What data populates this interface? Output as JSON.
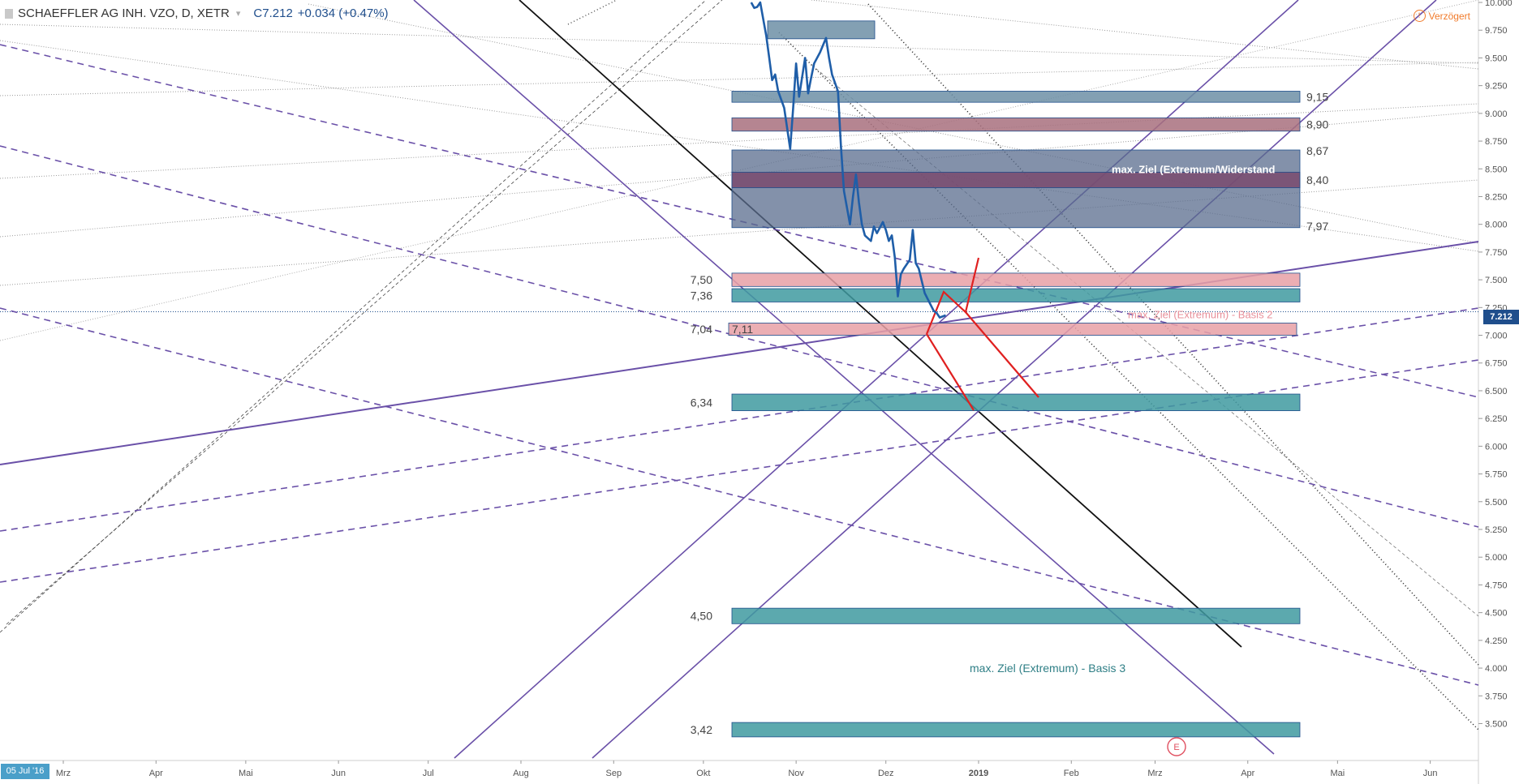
{
  "header": {
    "symbol": "SCHAEFFLER AG INH. VZO, D, XETR",
    "price_prefix": "C",
    "price": "7.212",
    "change": "+0.034 (+0.47%)"
  },
  "delay_label": "Verzögert",
  "delay_icon": "clock-icon",
  "date_chip": "05 Jul '16",
  "current_price_tag": "7.212",
  "colors": {
    "price_line": "#1f5ea8",
    "teal_zone": "#3f9aa0",
    "pink_zone": "#e8a0a6",
    "mauve_zone": "#a8707e",
    "slate_zone": "#6d8fa6",
    "navy_zone": "#5a6c8e",
    "purple_line": "#6a50a8",
    "red_projection": "#e02020",
    "current_price_tag": "#1f4e8c"
  },
  "chart_data": {
    "type": "line",
    "title": "SCHAEFFLER AG INH. VZO, D, XETR",
    "y_axis_side": "right",
    "ylim": [
      3.35,
      10.0
    ],
    "y_ticks": [
      "10.000",
      "9.750",
      "9.500",
      "9.250",
      "9.000",
      "8.750",
      "8.500",
      "8.250",
      "8.000",
      "7.750",
      "7.500",
      "7.250",
      "7.000",
      "6.750",
      "6.500",
      "6.250",
      "6.000",
      "5.750",
      "5.500",
      "5.250",
      "5.000",
      "4.750",
      "4.500",
      "4.250",
      "4.000",
      "3.750",
      "3.500"
    ],
    "x_tick_labels": [
      "Mrz",
      "Apr",
      "Mai",
      "Jun",
      "Jul",
      "Aug",
      "Sep",
      "Okt",
      "Nov",
      "Dez",
      "2019",
      "Feb",
      "Mrz",
      "Apr",
      "Mai",
      "Jun"
    ],
    "x_tick_months": [
      "2018-03",
      "2018-04",
      "2018-05",
      "2018-06",
      "2018-07",
      "2018-08",
      "2018-09",
      "2018-10",
      "2018-11",
      "2018-12",
      "2019-01",
      "2019-02",
      "2019-03",
      "2019-04",
      "2019-05",
      "2019-06"
    ],
    "series": [
      {
        "values": [
          [
            "2018-10-17",
            10.0
          ],
          [
            "2018-10-18",
            9.95
          ],
          [
            "2018-10-19",
            9.96
          ],
          [
            "2018-10-20",
            10.0
          ],
          [
            "2018-10-22",
            9.7
          ],
          [
            "2018-10-23",
            9.5
          ],
          [
            "2018-10-24",
            9.3
          ],
          [
            "2018-10-25",
            9.35
          ],
          [
            "2018-10-26",
            9.2
          ],
          [
            "2018-10-28",
            9.05
          ],
          [
            "2018-10-30",
            8.68
          ],
          [
            "2018-10-31",
            9.05
          ],
          [
            "2018-11-01",
            9.45
          ],
          [
            "2018-11-02",
            9.15
          ],
          [
            "2018-11-04",
            9.5
          ],
          [
            "2018-11-05",
            9.18
          ],
          [
            "2018-11-06",
            9.32
          ],
          [
            "2018-11-07",
            9.45
          ],
          [
            "2018-11-09",
            9.55
          ],
          [
            "2018-11-11",
            9.68
          ],
          [
            "2018-11-12",
            9.5
          ],
          [
            "2018-11-13",
            9.35
          ],
          [
            "2018-11-15",
            9.2
          ],
          [
            "2018-11-16",
            8.7
          ],
          [
            "2018-11-17",
            8.3
          ],
          [
            "2018-11-18",
            8.15
          ],
          [
            "2018-11-19",
            8.0
          ],
          [
            "2018-11-20",
            8.25
          ],
          [
            "2018-11-21",
            8.45
          ],
          [
            "2018-11-22",
            8.2
          ],
          [
            "2018-11-23",
            8.0
          ],
          [
            "2018-11-24",
            7.9
          ],
          [
            "2018-11-26",
            7.85
          ],
          [
            "2018-11-27",
            7.98
          ],
          [
            "2018-11-28",
            7.92
          ],
          [
            "2018-11-30",
            8.02
          ],
          [
            "2018-12-01",
            7.95
          ],
          [
            "2018-12-02",
            7.85
          ],
          [
            "2018-12-03",
            7.9
          ],
          [
            "2018-12-04",
            7.7
          ],
          [
            "2018-12-05",
            7.35
          ],
          [
            "2018-12-06",
            7.55
          ],
          [
            "2018-12-07",
            7.6
          ],
          [
            "2018-12-09",
            7.68
          ],
          [
            "2018-12-10",
            7.95
          ],
          [
            "2018-12-11",
            7.65
          ],
          [
            "2018-12-12",
            7.6
          ],
          [
            "2018-12-14",
            7.38
          ],
          [
            "2018-12-17",
            7.22
          ],
          [
            "2018-12-18",
            7.2
          ],
          [
            "2018-12-19",
            7.16
          ],
          [
            "2018-12-21",
            7.18
          ]
        ]
      }
    ],
    "zones": [
      {
        "price": "9,15",
        "range": [
          9.1,
          9.2
        ],
        "color": "#6d8fa6",
        "label_side": "right"
      },
      {
        "price": "8,90",
        "range": [
          8.84,
          8.96
        ],
        "color": "#a8707e",
        "label_side": "right"
      },
      {
        "price": "8,67",
        "range": [
          7.97,
          8.67
        ],
        "color": "#5a6c8e",
        "label_side": "right"
      },
      {
        "price": "8,40",
        "range": [
          8.33,
          8.47
        ],
        "color": "#7a4a6e",
        "label_side": "right"
      },
      {
        "price": "7,97",
        "range": [
          7.96,
          7.98
        ],
        "color": "#5a6c8e",
        "label_side": "right"
      },
      {
        "price": "7,50",
        "range": [
          7.44,
          7.56
        ],
        "color": "#e8a0a6",
        "label_side": "left"
      },
      {
        "price": "7,36",
        "range": [
          7.3,
          7.42
        ],
        "color": "#3f9aa0",
        "label_side": "left"
      },
      {
        "price": "7,04",
        "range": [
          7.0,
          7.11
        ],
        "color": "#e8a0a6",
        "label_side": "left"
      },
      {
        "price": "7,11",
        "range": [
          7.0,
          7.11
        ],
        "color": "#e8a0a6",
        "label_side": "inside"
      },
      {
        "price": "6,34",
        "range": [
          6.32,
          6.47
        ],
        "color": "#3f9aa0",
        "label_side": "left"
      },
      {
        "price": "4,50",
        "range": [
          4.4,
          4.54
        ],
        "color": "#3f9aa0",
        "label_side": "left"
      },
      {
        "price": "3,42",
        "range": [
          3.38,
          3.51
        ],
        "color": "#3f9aa0",
        "label_side": "left"
      }
    ],
    "annotations": [
      {
        "text": "max. Ziel (Extremum/Widerstand",
        "color": "#ffffff"
      },
      {
        "text": "max. Ziel (Extremum) - Basis 2",
        "color": "#e8909a"
      },
      {
        "text": "max. Ziel (Extremum) - Basis 3",
        "color": "#2f7f86"
      }
    ],
    "event_marker": "E"
  }
}
